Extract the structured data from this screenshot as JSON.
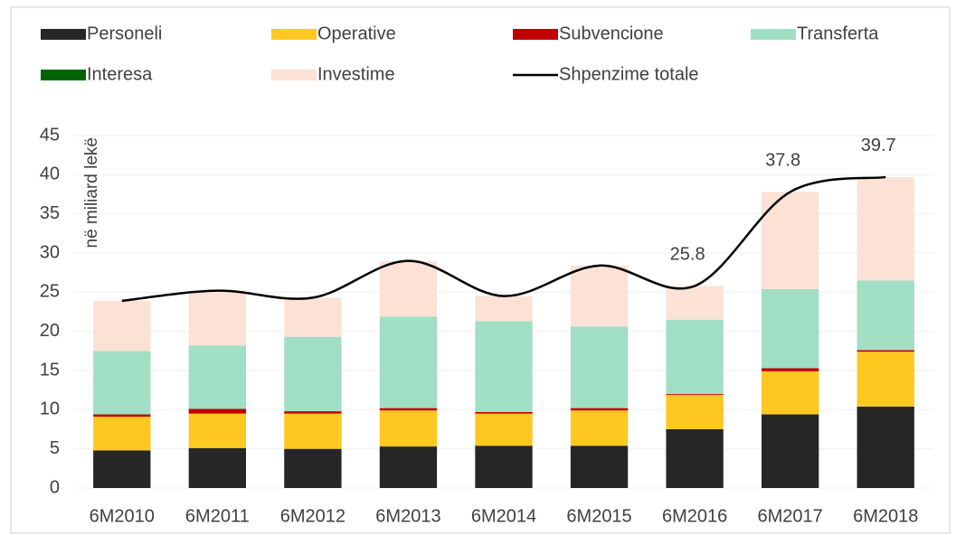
{
  "chart_data": {
    "type": "stacked-bar-line",
    "y_label": "në miliard lekë",
    "categories": [
      "6M2010",
      "6M2011",
      "6M2012",
      "6M2013",
      "6M2014",
      "6M2015",
      "6M2016",
      "6M2017",
      "6M2018"
    ],
    "series": [
      {
        "name": "Personeli",
        "color": "#262626",
        "values": [
          4.8,
          5.1,
          5.0,
          5.3,
          5.4,
          5.4,
          7.5,
          9.4,
          10.4
        ]
      },
      {
        "name": "Operative",
        "color": "#ffc820",
        "values": [
          4.3,
          4.4,
          4.5,
          4.6,
          4.1,
          4.5,
          4.4,
          5.5,
          7.0
        ]
      },
      {
        "name": "Subvencione",
        "color": "#c00000",
        "values": [
          0.3,
          0.6,
          0.3,
          0.3,
          0.2,
          0.3,
          0.1,
          0.4,
          0.2
        ]
      },
      {
        "name": "Transferta",
        "color": "#a0dfc3",
        "values": [
          8.1,
          8.1,
          9.5,
          11.7,
          11.6,
          10.4,
          9.5,
          10.1,
          8.9
        ]
      },
      {
        "name": "Interesa",
        "color": "#006400",
        "values": [
          0,
          0,
          0,
          0,
          0,
          0,
          0,
          0,
          0
        ]
      },
      {
        "name": "Investime",
        "color": "#fbe2d5",
        "values": [
          6.4,
          7.0,
          5.0,
          7.1,
          3.2,
          7.8,
          4.3,
          12.4,
          13.2
        ]
      }
    ],
    "line": {
      "name": "Shpenzime totale",
      "color": "#000000",
      "values": [
        23.9,
        25.2,
        24.3,
        29.0,
        24.5,
        28.4,
        25.8,
        37.8,
        39.7
      ],
      "value_labels": [
        null,
        null,
        null,
        null,
        null,
        null,
        "25.8",
        "37.8",
        "39.7"
      ]
    },
    "ylim": [
      0,
      45
    ],
    "yticks": [
      0,
      5,
      10,
      15,
      20,
      25,
      30,
      35,
      40,
      45
    ],
    "grid": true
  }
}
